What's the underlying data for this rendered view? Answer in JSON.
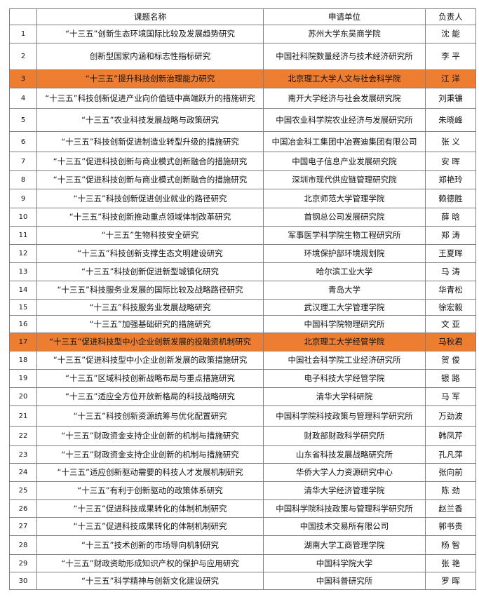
{
  "highlight_color": "#ED7D31",
  "headers": [
    "",
    "课题名称",
    "申请单位",
    "负责人"
  ],
  "rows": [
    {
      "no": "1",
      "title": "“十三五”创新生态环境国际比较及发展趋势研究",
      "unit": "苏州大学东吴商学院",
      "leader": "沈 能",
      "highlight": false
    },
    {
      "no": "2",
      "title": "创新型国家内涵和标志性指标研究",
      "unit": "中国社科院数量经济与技术经济研究所",
      "leader": "李 平",
      "highlight": false
    },
    {
      "no": "3",
      "title": "“十三五”提升科技创新治理能力研究",
      "unit": "北京理工大学人文与社会科学院",
      "leader": "江 洋",
      "highlight": true
    },
    {
      "no": "4",
      "title": "“十三五”科技创新促进产业向价值链中高端跃升的措施研究",
      "unit": "南开大学经济与社会发展研究院",
      "leader": "刘秉镰",
      "highlight": false
    },
    {
      "no": "5",
      "title": "“十三五”农业科技发展战略与政策研究",
      "unit": "中国农业科学院农业经济与发展研究所",
      "leader": "朱晓峰",
      "highlight": false
    },
    {
      "no": "6",
      "title": "“十三五”科技创新促进制造业转型升级的措施研究",
      "unit": "中国冶金科工集团中冶赛迪集团有限公司",
      "leader": "张 义",
      "highlight": false
    },
    {
      "no": "7",
      "title": "“十三五”促进科技创新与商业模式创新融合的措施研究",
      "unit": "中国电子信息产业发展研究院",
      "leader": "安 晖",
      "highlight": false
    },
    {
      "no": "8",
      "title": "“十三五”促进科技创新与商业模式创新融合的措施研究",
      "unit": "深圳市现代供应链管理研究院",
      "leader": "郑艳玲",
      "highlight": false
    },
    {
      "no": "9",
      "title": "“十三五”科技创新促进创业就业的路径研究",
      "unit": "北京师范大学管理学院",
      "leader": "赖德胜",
      "highlight": false
    },
    {
      "no": "10",
      "title": "“十三五”科技创新推动重点领域体制改革研究",
      "unit": "首钢总公司发展研究院",
      "leader": "薛 晗",
      "highlight": false
    },
    {
      "no": "11",
      "title": "“十三五”生物科技安全研究",
      "unit": "军事医学科学院生物工程研究所",
      "leader": "郑 涛",
      "highlight": false
    },
    {
      "no": "12",
      "title": "“十三五”科技创新支撑生态文明建设研究",
      "unit": "环境保护部环境规划院",
      "leader": "王夏晖",
      "highlight": false
    },
    {
      "no": "13",
      "title": "“十三五”科技创新促进新型城镇化研究",
      "unit": "哈尔滨工业大学",
      "leader": "马 涛",
      "highlight": false
    },
    {
      "no": "14",
      "title": "“十三五”科技服务业发展的国际比较及战略路径研究",
      "unit": "青岛大学",
      "leader": "华青松",
      "highlight": false
    },
    {
      "no": "15",
      "title": "“十三五”科技服务业发展战略研究",
      "unit": "武汉理工大学管理学院",
      "leader": "徐宏毅",
      "highlight": false
    },
    {
      "no": "16",
      "title": "“十三五”加强基础研究的措施研究",
      "unit": "中国科学院物理研究所",
      "leader": "文 亚",
      "highlight": false
    },
    {
      "no": "17",
      "title": "“十三五”促进科技型中小企业创新发展的投融资机制研究",
      "unit": "北京理工大学经管学院",
      "leader": "马秋君",
      "highlight": true
    },
    {
      "no": "18",
      "title": "“十三五”促进科技型中小企业创新发展的政策措施研究",
      "unit": "中国社会科学院工业经济研究所",
      "leader": "贺 俊",
      "highlight": false
    },
    {
      "no": "19",
      "title": "“十三五”区域科技创新战略布局与重点措施研究",
      "unit": "电子科技大学经管学院",
      "leader": "银 路",
      "highlight": false
    },
    {
      "no": "20",
      "title": "“十三五”适应全方位开放新格局的科技战略研究",
      "unit": "清华大学科研院",
      "leader": "马 军",
      "highlight": false
    },
    {
      "no": "21",
      "title": "“十三五”科技创新资源统筹与优化配置研究",
      "unit": "中国科学院科技政策与管理科学研究所",
      "leader": "万劲波",
      "highlight": false
    },
    {
      "no": "22",
      "title": "“十三五”财政资金支持企业创新的机制与措施研究",
      "unit": "财政部财政科学研究所",
      "leader": "韩凤芹",
      "highlight": false
    },
    {
      "no": "23",
      "title": "“十三五”财政资金支持企业创新的机制与措施研究",
      "unit": "山东省科技发展战略研究所",
      "leader": "孔凡萍",
      "highlight": false
    },
    {
      "no": "24",
      "title": "“十三五”适应创新驱动需要的科技人才发展机制研究",
      "unit": "华侨大学人力资源研究中心",
      "leader": "张向前",
      "highlight": false
    },
    {
      "no": "25",
      "title": "“十三五”有利于创新驱动的政策体系研究",
      "unit": "清华大学经济管理学院",
      "leader": "陈 劲",
      "highlight": false
    },
    {
      "no": "26",
      "title": "“十三五”促进科技成果转化的体制机制研究",
      "unit": "中国科学院科技政策与管理科学研究所",
      "leader": "赵兰香",
      "highlight": false
    },
    {
      "no": "27",
      "title": "“十三五”促进科技成果转化的体制机制研究",
      "unit": "中国技术交易所有限公司",
      "leader": "郭书贵",
      "highlight": false
    },
    {
      "no": "28",
      "title": "“十三五”技术创新的市场导向机制研究",
      "unit": "湖南大学工商管理学院",
      "leader": "杨 智",
      "highlight": false
    },
    {
      "no": "29",
      "title": "“十三五”财政资助形成知识产权的保护与应用研究",
      "unit": "中国科学院大学",
      "leader": "张 艳",
      "highlight": false
    },
    {
      "no": "30",
      "title": "“十三五”科学精神与创新文化建设研究",
      "unit": "中国科普研究所",
      "leader": "罗 晖",
      "highlight": false
    }
  ]
}
